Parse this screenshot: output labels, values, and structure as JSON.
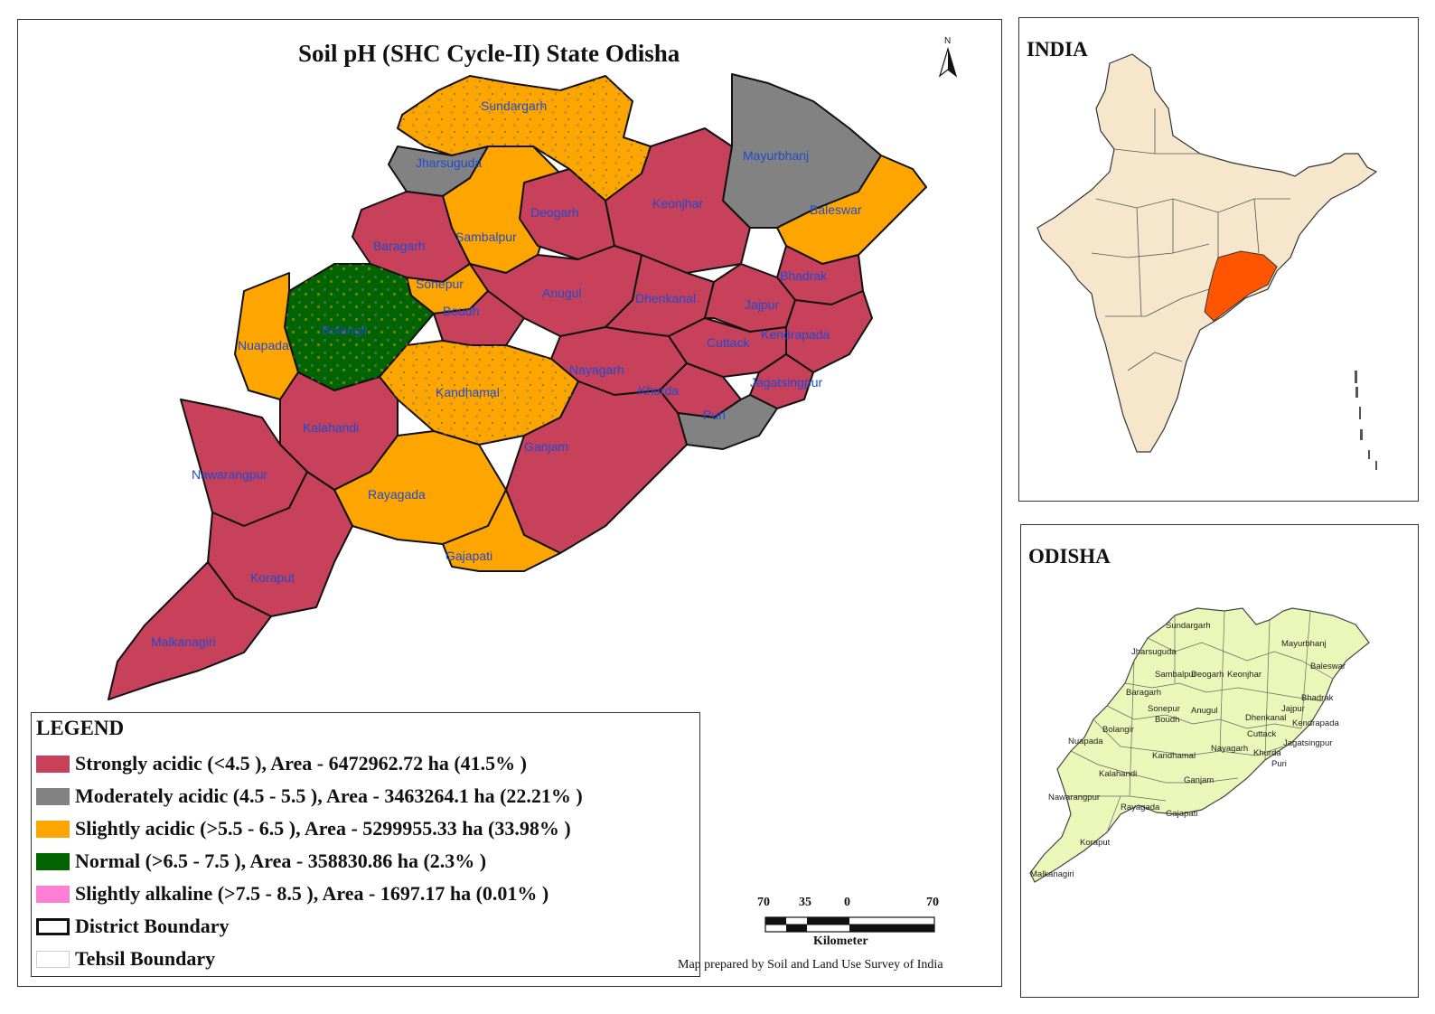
{
  "map": {
    "title": "Soil pH (SHC Cycle-II) State Odisha",
    "north_label": "N",
    "districts": [
      "Sundargarh",
      "Jharsuguda",
      "Deogarh",
      "Keonjhar",
      "Mayurbhanj",
      "Baleswar",
      "Sambalpur",
      "Baragarh",
      "Sonepur",
      "Anugul",
      "Dhenkanal",
      "Bhadrak",
      "Jajpur",
      "Bolangir",
      "Boudh",
      "Nuapada",
      "Cuttack",
      "Kendrapada",
      "Nayagarh",
      "Kandhamal",
      "Jagatsingpur",
      "Khurda",
      "Puri",
      "Kalahandi",
      "Ganjam",
      "Nawarangpur",
      "Rayagada",
      "Gajapati",
      "Koraput",
      "Malkanagiri"
    ]
  },
  "legend": {
    "title": "LEGEND",
    "items": [
      {
        "label": "Strongly acidic  (<4.5 ), Area - 6472962.72  ha (41.5% )",
        "color": "#c8415a"
      },
      {
        "label": "Moderately acidic  (4.5 - 5.5 ), Area - 3463264.1  ha (22.21% )",
        "color": "#828282"
      },
      {
        "label": "Slightly acidic  (>5.5 - 6.5 ), Area - 5299955.33  ha (33.98% )",
        "color": "#ffa500"
      },
      {
        "label": "Normal  (>6.5 - 7.5 ), Area - 358830.86  ha (2.3% )",
        "color": "#006400"
      },
      {
        "label": "Slightly alkaline  (>7.5 - 8.5 ), Area - 1697.17  ha (0.01% )",
        "color": "#ff7fd4"
      },
      {
        "label": "District Boundary",
        "color": "#ffffff"
      },
      {
        "label": "Tehsil Boundary",
        "color": "#ffffff"
      }
    ]
  },
  "scale": {
    "ticks": [
      "70",
      "35",
      "0",
      "70"
    ],
    "unit": "Kilometer"
  },
  "credit": "Map prepared by Soil and Land Use Survey of India",
  "india_inset": {
    "title": "INDIA",
    "highlight_color": "#ff5500",
    "land_color": "#f5e6cc"
  },
  "odisha_inset": {
    "title": "ODISHA",
    "fill_color": "#eaf7b8",
    "districts": [
      "Sundargarh",
      "Jharsuguda",
      "Sambalpur",
      "Deogarh",
      "Keonjhar",
      "Mayurbhanj",
      "Baleswar",
      "Baragarh",
      "Sonepur",
      "Anugul",
      "Bhadrak",
      "Jajpur",
      "Bolangir",
      "Boudh",
      "Dhenkanal",
      "Kendrapada",
      "Nuapada",
      "Cuttack",
      "Jagatsingpur",
      "Nayagarh",
      "Kandhamal",
      "Khurda",
      "Puri",
      "Kalahandi",
      "Ganjam",
      "Nawarangpur",
      "Rayagada",
      "Gajapati",
      "Koraput",
      "Malkanagiri"
    ]
  }
}
